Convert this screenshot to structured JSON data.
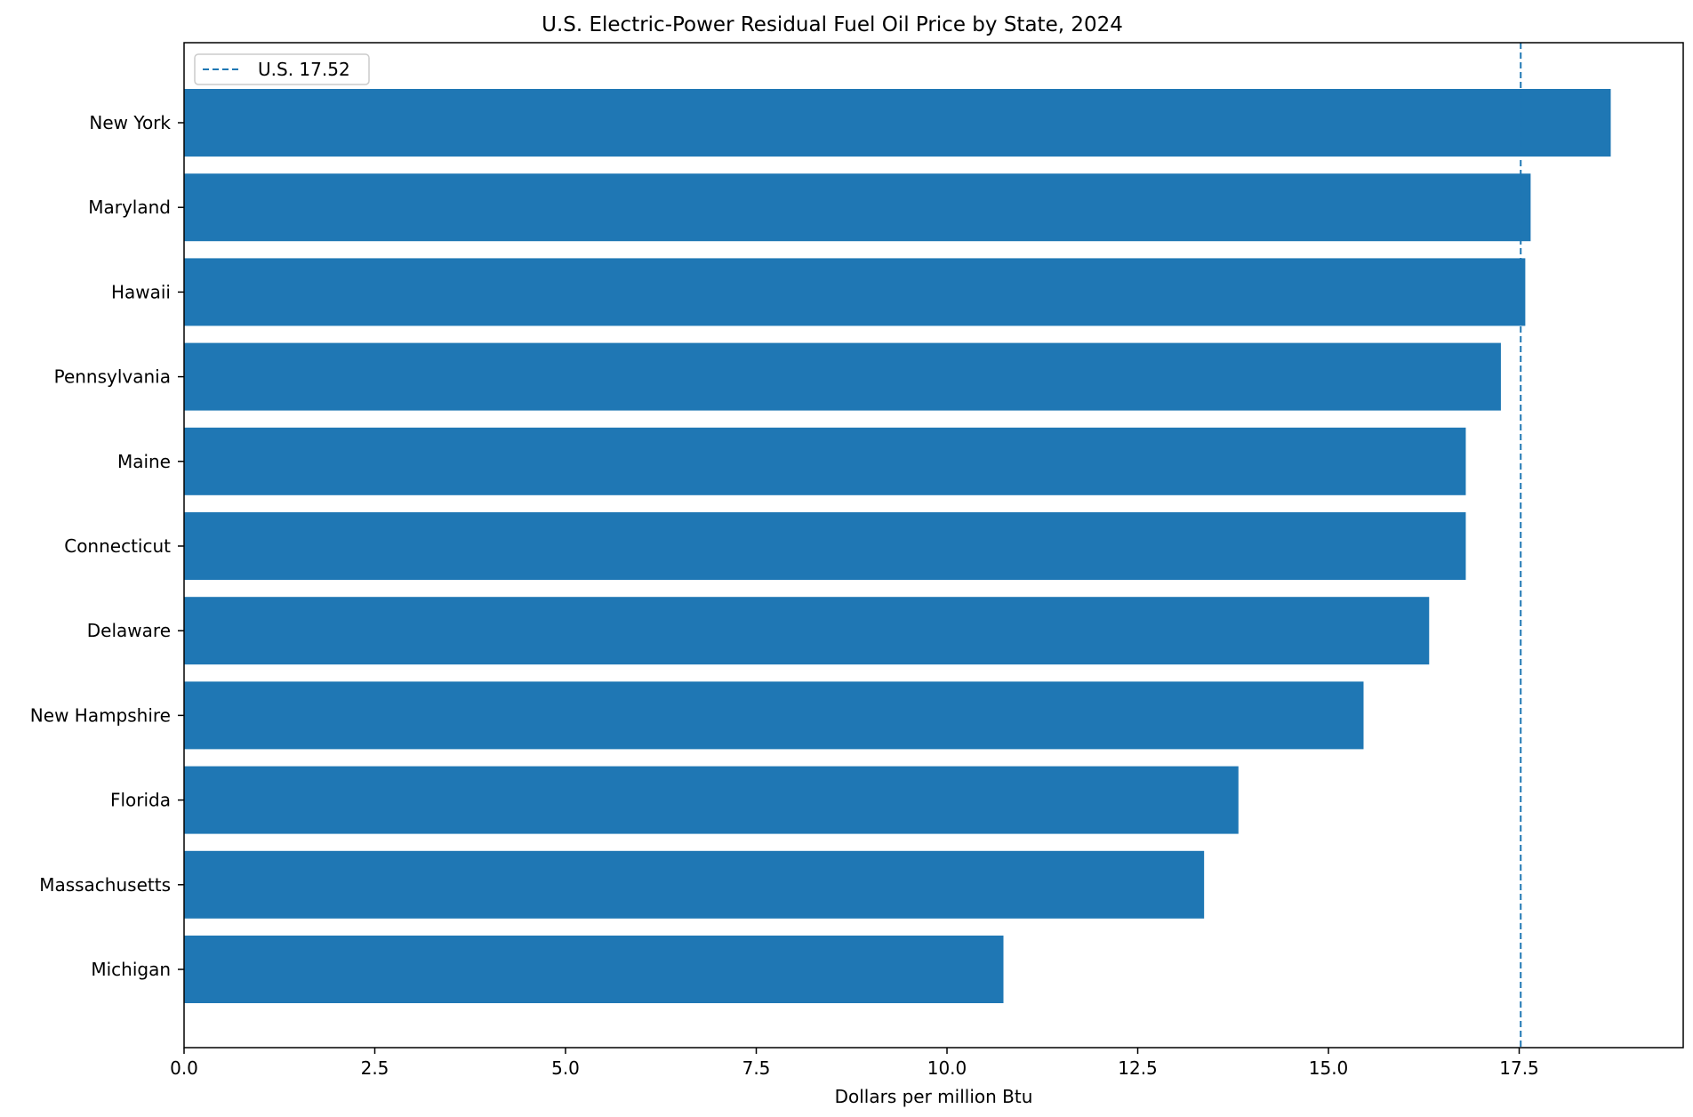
{
  "chart_data": {
    "type": "bar",
    "orientation": "horizontal",
    "title": "U.S. Electric-Power Residual Fuel Oil Price by State, 2024",
    "xlabel": "Dollars per million Btu",
    "ylabel": "",
    "categories": [
      "New York",
      "Maryland",
      "Hawaii",
      "Pennsylvania",
      "Maine",
      "Connecticut",
      "Delaware",
      "New Hampshire",
      "Florida",
      "Massachusetts",
      "Michigan"
    ],
    "values": [
      18.7,
      17.65,
      17.58,
      17.26,
      16.8,
      16.8,
      16.32,
      15.46,
      13.82,
      13.37,
      10.74
    ],
    "xlim": [
      0,
      19.65
    ],
    "xticks": [
      0,
      2.5,
      5,
      7.5,
      10,
      12.5,
      15,
      17.5
    ],
    "xtick_labels": [
      "0.0",
      "2.5",
      "5.0",
      "7.5",
      "10.0",
      "12.5",
      "15.0",
      "17.5"
    ],
    "reference_line": {
      "value": 17.52,
      "label": "U.S. 17.52",
      "style": "dashed"
    },
    "legend": {
      "position": "top-left",
      "entries": [
        "U.S. 17.52"
      ]
    },
    "grid": false,
    "bar_color": "#1f77b4"
  }
}
